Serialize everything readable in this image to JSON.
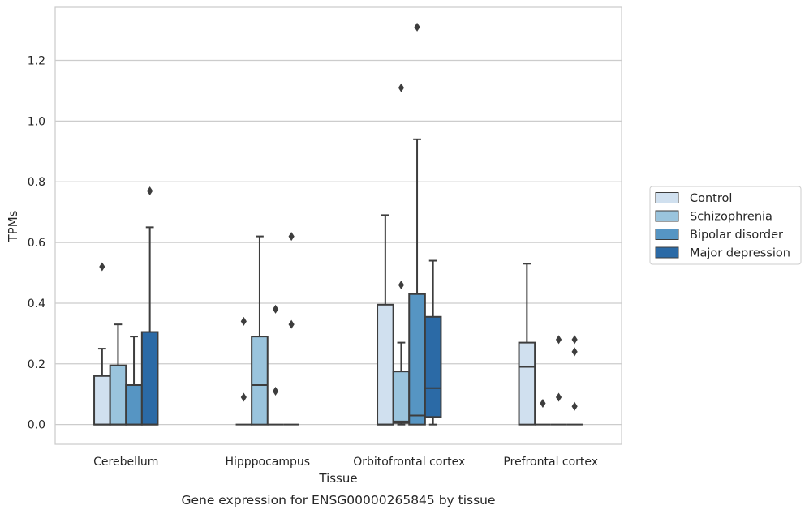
{
  "chart_data": {
    "type": "box",
    "caption": "Gene expression for ENSG00000265845 by tissue",
    "xlabel": "Tissue",
    "ylabel": "TPMs",
    "ylim": [
      -0.065,
      1.375
    ],
    "yticks": [
      "0.0",
      "0.2",
      "0.4",
      "0.6",
      "0.8",
      "1.0",
      "1.2"
    ],
    "grid": "horizontal",
    "legend_position": "right",
    "categories": [
      "Cerebellum",
      "Hipppocampus",
      "Orbitofrontal cortex",
      "Prefrontal cortex"
    ],
    "series": [
      {
        "name": "Control",
        "color": "#d0e0ef",
        "boxes": [
          {
            "min": 0,
            "q1": 0,
            "median": 0,
            "q3": 0.16,
            "max": 0.25,
            "outliers": [
              0.52
            ]
          },
          {
            "min": 0,
            "q1": 0,
            "median": 0,
            "q3": 0,
            "max": 0,
            "outliers": [
              0.34,
              0.09
            ]
          },
          {
            "min": 0,
            "q1": 0,
            "median": 0,
            "q3": 0.395,
            "max": 0.69,
            "outliers": []
          },
          {
            "min": 0,
            "q1": 0,
            "median": 0.19,
            "q3": 0.27,
            "max": 0.53,
            "outliers": []
          }
        ]
      },
      {
        "name": "Schizophrenia",
        "color": "#9ac4dd",
        "boxes": [
          {
            "min": 0,
            "q1": 0,
            "median": 0,
            "q3": 0.195,
            "max": 0.33,
            "outliers": []
          },
          {
            "min": 0,
            "q1": 0,
            "median": 0.13,
            "q3": 0.29,
            "max": 0.62,
            "outliers": []
          },
          {
            "min": 0,
            "q1": 0.005,
            "median": 0.01,
            "q3": 0.175,
            "max": 0.27,
            "outliers": [
              0.46,
              1.11
            ]
          },
          {
            "min": 0,
            "q1": 0,
            "median": 0,
            "q3": 0,
            "max": 0,
            "outliers": [
              0.07
            ]
          }
        ]
      },
      {
        "name": "Bipolar disorder",
        "color": "#5695c3",
        "boxes": [
          {
            "min": 0,
            "q1": 0,
            "median": 0,
            "q3": 0.13,
            "max": 0.29,
            "outliers": []
          },
          {
            "min": 0,
            "q1": 0,
            "median": 0,
            "q3": 0,
            "max": 0,
            "outliers": [
              0.38,
              0.11
            ]
          },
          {
            "min": 0,
            "q1": 0,
            "median": 0.03,
            "q3": 0.43,
            "max": 0.94,
            "outliers": [
              1.31
            ]
          },
          {
            "min": 0,
            "q1": 0,
            "median": 0,
            "q3": 0,
            "max": 0,
            "outliers": [
              0.28,
              0.09
            ]
          }
        ]
      },
      {
        "name": "Major depression",
        "color": "#2b6aa6",
        "boxes": [
          {
            "min": 0,
            "q1": 0,
            "median": 0,
            "q3": 0.305,
            "max": 0.65,
            "outliers": [
              0.77
            ]
          },
          {
            "min": 0,
            "q1": 0,
            "median": 0,
            "q3": 0,
            "max": 0,
            "outliers": [
              0.62,
              0.33
            ]
          },
          {
            "min": 0,
            "q1": 0.025,
            "median": 0.12,
            "q3": 0.355,
            "max": 0.54,
            "outliers": []
          },
          {
            "min": 0,
            "q1": 0,
            "median": 0,
            "q3": 0,
            "max": 0,
            "outliers": [
              0.28,
              0.24,
              0.06
            ]
          }
        ]
      }
    ]
  }
}
